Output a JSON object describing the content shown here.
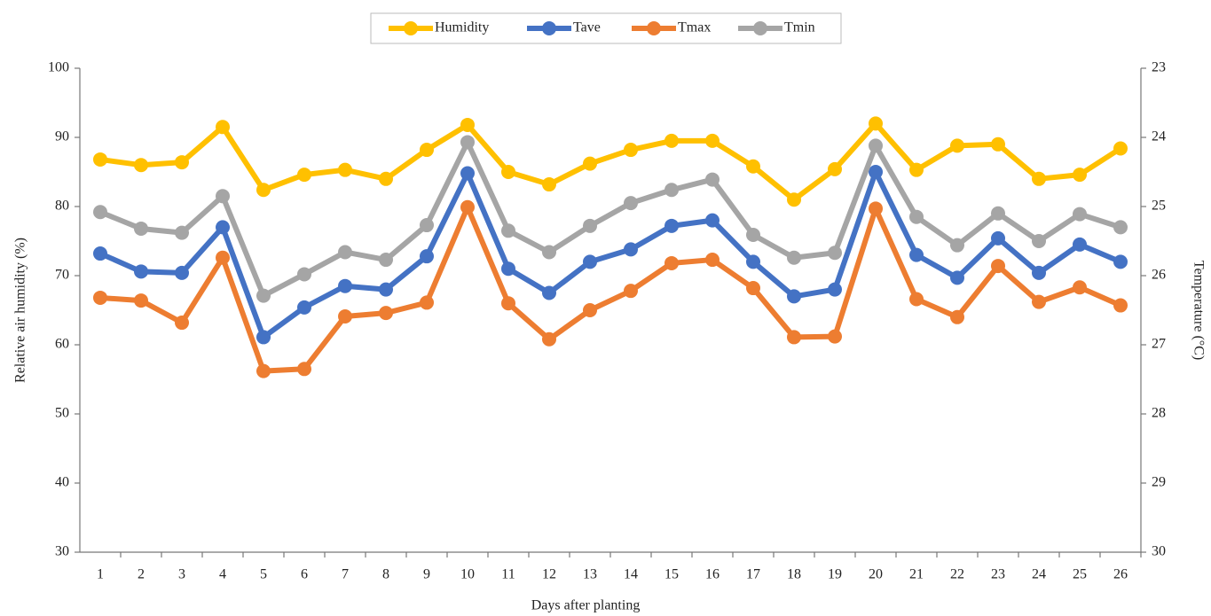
{
  "chart_data": {
    "type": "line",
    "x_label": "Days after planting",
    "y_label": "Relative air humidity (%)",
    "y2_label": "Temperature (°C)",
    "categories": [
      "1",
      "2",
      "3",
      "4",
      "5",
      "6",
      "7",
      "8",
      "9",
      "10",
      "11",
      "12",
      "13",
      "14",
      "15",
      "16",
      "17",
      "18",
      "19",
      "20",
      "21",
      "22",
      "23",
      "24",
      "25",
      "26"
    ],
    "ylim": [
      30,
      100
    ],
    "yticks": [
      30,
      40,
      50,
      60,
      70,
      80,
      90,
      100
    ],
    "y2lim": [
      30,
      23
    ],
    "y2ticks": [
      23,
      24,
      25,
      26,
      27,
      28,
      29,
      30
    ],
    "series": [
      {
        "name": "Humidity",
        "color": "#ffc000",
        "values": [
          86.8,
          86,
          86.4,
          91.5,
          82.4,
          84.6,
          85.3,
          84,
          88.2,
          91.8,
          85,
          83.2,
          86.2,
          88.2,
          89.5,
          89.5,
          85.8,
          81,
          85.4,
          92,
          85.3,
          88.8,
          89,
          84,
          84.6,
          88.4
        ]
      },
      {
        "name": "Tave",
        "color": "#4472c4",
        "axis": "y2",
        "values": [
          25.68,
          25.94,
          25.96,
          25.3,
          26.89,
          26.46,
          26.15,
          26.2,
          25.72,
          24.52,
          25.9,
          26.25,
          25.8,
          25.62,
          25.28,
          25.2,
          25.8,
          26.3,
          26.2,
          24.5,
          25.7,
          26.03,
          25.46,
          25.96,
          25.55,
          25.8
        ]
      },
      {
        "name": "Tmax",
        "color": "#ed7d31",
        "axis": "y2",
        "values": [
          26.32,
          26.36,
          26.68,
          25.74,
          27.38,
          27.35,
          26.59,
          26.54,
          26.39,
          25.01,
          26.4,
          26.92,
          26.5,
          26.22,
          25.82,
          25.77,
          26.18,
          26.89,
          26.88,
          25.03,
          26.34,
          26.6,
          25.86,
          26.38,
          26.17,
          26.43
        ]
      },
      {
        "name": "Tmin",
        "color": "#a5a5a5",
        "axis": "y2",
        "values": [
          25.08,
          25.32,
          25.38,
          24.85,
          26.29,
          25.98,
          25.66,
          25.77,
          25.27,
          24.07,
          25.35,
          25.66,
          25.28,
          24.95,
          24.76,
          24.61,
          25.41,
          25.74,
          25.67,
          24.12,
          25.15,
          25.56,
          25.1,
          25.5,
          25.11,
          25.3
        ]
      }
    ]
  }
}
